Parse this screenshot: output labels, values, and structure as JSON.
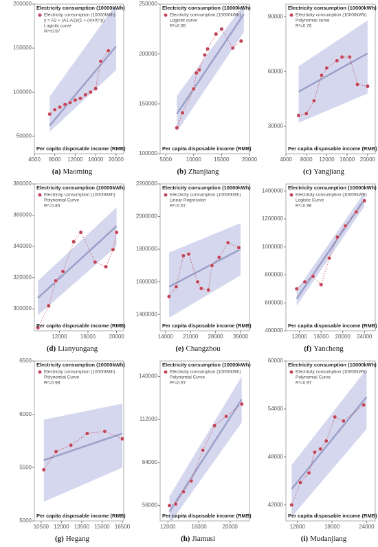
{
  "chart_data": [
    {
      "type": "scatter",
      "y_title": "Electricity consumption (10000kWh)",
      "x_title": "Per capita disposable income (RMB)",
      "legend_label": "Electricity consumption (10000kWh)",
      "equation": "y = A2 + (A1-A2)/(1 + (x/x0)^p)",
      "fit_label": "Logistic curve",
      "r2": "R²=0.97",
      "caption_label": "(a)",
      "caption_name": "Maoming",
      "xlim": [
        4000,
        21500
      ],
      "xticks": [
        4000,
        8000,
        12000,
        16000,
        20000
      ],
      "ylim": [
        30000,
        200000
      ],
      "yticks": [
        50000,
        100000,
        150000,
        200000
      ],
      "x": [
        7000,
        8000,
        9000,
        10000,
        11000,
        12000,
        13000,
        14000,
        15000,
        16000,
        17000,
        18500
      ],
      "y": [
        75000,
        80000,
        83000,
        86000,
        88000,
        91000,
        93000,
        97000,
        100000,
        104000,
        135000,
        147000
      ],
      "fit_x": [
        7000,
        20000
      ],
      "fit_y": [
        62000,
        152000
      ],
      "band_lower": [
        55000,
        125000
      ],
      "band_upper": [
        95000,
        200000
      ],
      "point_color": "#c0455a",
      "band_color": "#c9cde8",
      "fit_color": "#9aa0c8"
    },
    {
      "type": "scatter",
      "y_title": "Electricity consumption (10000kWh)",
      "x_title": "Per capita disposable income (RMB)",
      "legend_label": "Electricity consumption (10000kWh)",
      "fit_label": "Logistic curve",
      "r2": "R²=0.95",
      "caption_label": "(b)",
      "caption_name": "Zhanjiang",
      "xlim": [
        4000,
        20000
      ],
      "xticks": [
        5000,
        10000,
        15000,
        20000
      ],
      "ylim": [
        100000,
        250000
      ],
      "yticks": [
        100000,
        150000,
        200000,
        250000
      ],
      "x": [
        7000,
        8000,
        10000,
        10500,
        11000,
        12000,
        12500,
        14000,
        15000,
        17000,
        18500
      ],
      "y": [
        126000,
        141000,
        165000,
        181000,
        184000,
        199000,
        205000,
        220000,
        225000,
        206000,
        213000
      ],
      "fit_x": [
        7000,
        19000
      ],
      "fit_y": [
        140000,
        240000
      ],
      "band_lower": [
        122000,
        222000
      ],
      "band_upper": [
        158000,
        250000
      ],
      "point_color": "#c0455a",
      "band_color": "#c9cde8",
      "fit_color": "#9aa0c8"
    },
    {
      "type": "scatter",
      "y_title": "Electricity consumption (10000kWh)",
      "x_title": "Per capita disposable income (RMB)",
      "legend_label": "Electricity consumption (10000kWh)",
      "fit_label": "Polynomial curve",
      "r2": "R²=0.76",
      "caption_label": "(c)",
      "caption_name": "Yangjiang",
      "xlim": [
        4000,
        21500
      ],
      "xticks": [
        4000,
        8000,
        12000,
        16000,
        20000
      ],
      "ylim": [
        15000,
        97000
      ],
      "yticks": [
        30000,
        60000,
        90000
      ],
      "x": [
        6500,
        8000,
        9500,
        11000,
        12000,
        14000,
        15000,
        16500,
        18000,
        20000
      ],
      "y": [
        36000,
        37000,
        44000,
        58000,
        62000,
        66000,
        68000,
        68000,
        53000,
        52000
      ],
      "fit_x": [
        6500,
        20000
      ],
      "fit_y": [
        49000,
        70000
      ],
      "band_lower": [
        32000,
        48000
      ],
      "band_upper": [
        63000,
        88000
      ],
      "point_color": "#c0455a",
      "band_color": "#c9cde8",
      "fit_color": "#9aa0c8"
    },
    {
      "type": "scatter",
      "y_title": "Electricity consumption (10000kWh)",
      "x_title": "Per capita disposable income (RMB)",
      "legend_label": "Electricity consumption (10000kWh)",
      "fit_label": "Polynomial Curve",
      "r2": "R²=0.85",
      "caption_label": "(d)",
      "caption_name": "Lianyungang",
      "xlim": [
        8500,
        21000
      ],
      "xticks": [
        12000,
        16000,
        20000
      ],
      "ylim": [
        286000,
        380000
      ],
      "yticks": [
        300000,
        320000,
        340000,
        360000,
        380000
      ],
      "x": [
        9000,
        10500,
        11500,
        12500,
        14000,
        15000,
        17000,
        18500,
        19500,
        20000
      ],
      "y": [
        288000,
        302000,
        318000,
        324000,
        343000,
        349000,
        330000,
        327000,
        338000,
        349000
      ],
      "fit_x": [
        9000,
        20000
      ],
      "fit_y": [
        307000,
        353000
      ],
      "band_lower": [
        296000,
        340000
      ],
      "band_upper": [
        318000,
        365000
      ],
      "point_color": "#c0455a",
      "band_color": "#c9cde8",
      "fit_color": "#9aa0c8"
    },
    {
      "type": "scatter",
      "y_title": "Electricity consumption (10000kWh)",
      "x_title": "Per capita disposable income (RMB)",
      "legend_label": "Electricity consumption (10000kWh)",
      "fit_label": "Linear Regression",
      "r2": "R²=0.67",
      "caption_label": "(e)",
      "caption_name": "Changzhou",
      "xlim": [
        12500,
        37500
      ],
      "xticks": [
        14000,
        21000,
        28000,
        35000
      ],
      "ylim": [
        1300000,
        2200000
      ],
      "yticks": [
        1400000,
        1600000,
        1800000,
        2000000,
        2200000
      ],
      "x": [
        15000,
        17000,
        19000,
        20500,
        23000,
        24000,
        26000,
        27000,
        29000,
        31500,
        34500
      ],
      "y": [
        1510000,
        1570000,
        1760000,
        1770000,
        1600000,
        1560000,
        1550000,
        1700000,
        1750000,
        1840000,
        1810000
      ],
      "fit_x": [
        15000,
        35000
      ],
      "fit_y": [
        1570000,
        1800000
      ],
      "band_lower": [
        1380000,
        1640000
      ],
      "band_upper": [
        1780000,
        1960000
      ],
      "point_color": "#c0455a",
      "band_color": "#c9cde8",
      "fit_color": "#9aa0c8"
    },
    {
      "type": "scatter",
      "y_title": "Electricity consumption (10000kWh)",
      "x_title": "Per capita disposable income (RMB)",
      "legend_label": "Electricity consumption (10000kWh)",
      "fit_label": "Logistic Curve",
      "r2": "R²=0.96",
      "caption_label": "(f)",
      "caption_name": "Yancheng",
      "xlim": [
        9500,
        26000
      ],
      "xticks": [
        12000,
        16000,
        20000,
        24000
      ],
      "ylim": [
        400000,
        1450000
      ],
      "yticks": [
        400000,
        600000,
        800000,
        1000000,
        1200000,
        1400000
      ],
      "x": [
        11500,
        13000,
        14500,
        16000,
        17500,
        19000,
        20500,
        22500,
        24000
      ],
      "y": [
        700000,
        750000,
        790000,
        730000,
        920000,
        1070000,
        1150000,
        1250000,
        1330000
      ],
      "fit_x": [
        11500,
        24000
      ],
      "fit_y": [
        630000,
        1340000
      ],
      "band_lower": [
        580000,
        1290000
      ],
      "band_upper": [
        690000,
        1390000
      ],
      "point_color": "#c0455a",
      "band_color": "#c9cde8",
      "fit_color": "#9aa0c8"
    },
    {
      "type": "scatter",
      "y_title": "Electricity consumption (10000kWh)",
      "x_title": "Per capita disposable income (RMB)",
      "legend_label": "Electricity consumption (10000kWh)",
      "fit_label": "Polynomial Curve",
      "r2": "R²=0.98",
      "caption_label": "(g)",
      "caption_name": "Hegang",
      "xlim": [
        10000,
        16600
      ],
      "xticks": [
        10500,
        12000,
        13500,
        15000,
        16500
      ],
      "ylim": [
        5000,
        6500
      ],
      "yticks": [
        5000,
        5500,
        6000,
        6500
      ],
      "x": [
        10700,
        11600,
        12700,
        13900,
        15200,
        16500
      ],
      "y": [
        5480,
        5650,
        5710,
        5820,
        5840,
        5770
      ],
      "fit_x": [
        10700,
        16500
      ],
      "fit_y": [
        5570,
        5820
      ],
      "band_lower": [
        5180,
        5500
      ],
      "band_upper": [
        5950,
        6100
      ],
      "point_color": "#c0455a",
      "band_color": "#c9cde8",
      "fit_color": "#9aa0c8"
    },
    {
      "type": "scatter",
      "y_title": "Electricity consumption (10000kWh)",
      "x_title": "Per capita disposable income (RMB)",
      "legend_label": "Electricity consumption (10000kWh)",
      "fit_label": "Polynomial Curve",
      "r2": "R²=0.97",
      "caption_label": "(h)",
      "caption_name": "Jiamusi",
      "xlim": [
        11000,
        22500
      ],
      "xticks": [
        12000,
        16000,
        20000
      ],
      "ylim": [
        46000,
        150000
      ],
      "yticks": [
        56000,
        84000,
        112000,
        140000
      ],
      "x": [
        12200,
        13000,
        14000,
        15000,
        16500,
        18000,
        19500,
        21500
      ],
      "y": [
        56000,
        57000,
        65000,
        72000,
        92000,
        108000,
        114000,
        122000
      ],
      "fit_x": [
        12200,
        21500
      ],
      "fit_y": [
        52000,
        125000
      ],
      "band_lower": [
        44000,
        110000
      ],
      "band_upper": [
        62000,
        140000
      ],
      "point_color": "#c0455a",
      "band_color": "#c9cde8",
      "fit_color": "#9aa0c8"
    },
    {
      "type": "scatter",
      "y_title": "Electricity consumption (10000kWh)",
      "x_title": "Per capita disposable income (RMB)",
      "legend_label": "Electricity consumption (10000kWh)",
      "fit_label": "Polynomial Curve",
      "r2": "R²=0.97",
      "caption_label": "(i)",
      "caption_name": "Mudanjiang",
      "xlim": [
        10000,
        25500
      ],
      "xticks": [
        12000,
        18000,
        24000
      ],
      "ylim": [
        40000,
        60000
      ],
      "yticks": [
        42000,
        48000,
        54000,
        60000
      ],
      "x": [
        11000,
        12500,
        14000,
        15000,
        16000,
        17000,
        18500,
        20000,
        23500
      ],
      "y": [
        42000,
        44800,
        46000,
        48600,
        49000,
        50000,
        53000,
        52500,
        54500
      ],
      "fit_x": [
        11000,
        24000
      ],
      "fit_y": [
        44000,
        55500
      ],
      "band_lower": [
        40500,
        51500
      ],
      "band_upper": [
        47000,
        59000
      ],
      "point_color": "#c0455a",
      "band_color": "#c9cde8",
      "fit_color": "#9aa0c8"
    }
  ]
}
